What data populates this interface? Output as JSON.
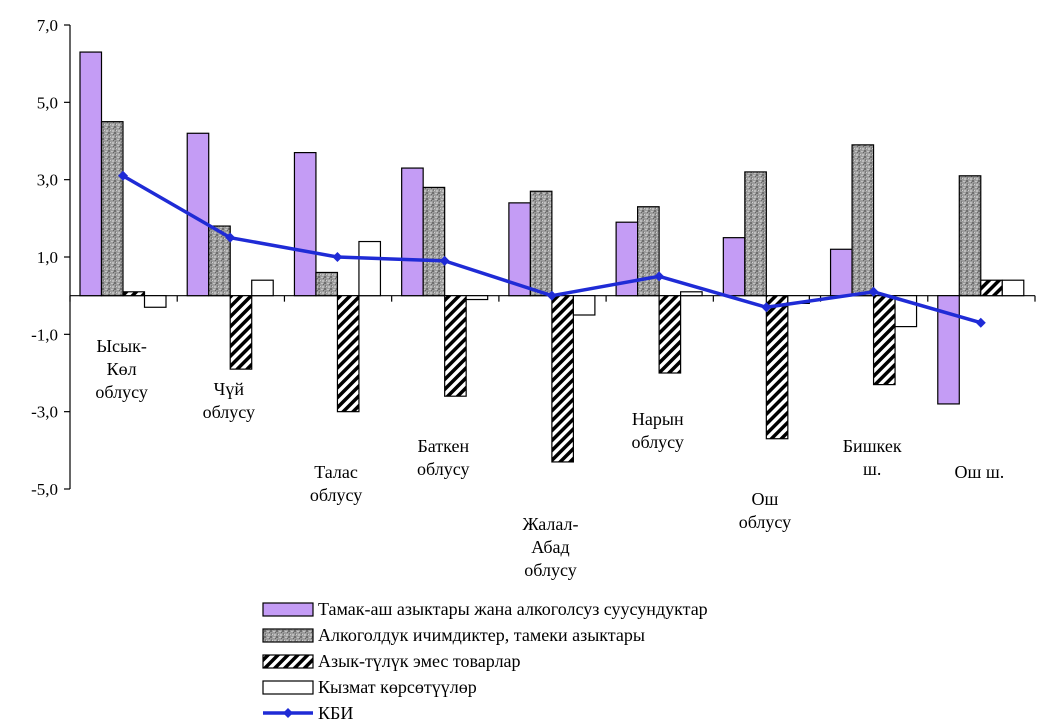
{
  "chart_data": {
    "type": "bar",
    "categories": [
      [
        "Ысык-",
        "Көл",
        "облусу"
      ],
      [
        "Чүй",
        "облусу"
      ],
      [
        "Талас",
        "облусу"
      ],
      [
        "Баткен",
        "облусу"
      ],
      [
        "Жалал-",
        "Абад",
        "облусу"
      ],
      [
        "Нарын",
        "облусу"
      ],
      [
        "Ош",
        "облусу"
      ],
      [
        "Бишкек",
        "ш."
      ],
      [
        "Ош ш."
      ]
    ],
    "series": [
      {
        "name": "Тамак-аш азыктары жана алкоголсуз суусундуктар",
        "kind": "bar",
        "pattern": "solid-violet",
        "values": [
          6.3,
          4.2,
          3.7,
          3.3,
          2.4,
          1.9,
          1.5,
          1.2,
          -2.8
        ]
      },
      {
        "name": "Алкоголдук ичимдиктер, тамеки азыктары",
        "kind": "bar",
        "pattern": "gray-texture",
        "values": [
          4.5,
          1.8,
          0.6,
          2.8,
          2.7,
          2.3,
          3.2,
          3.9,
          3.1
        ]
      },
      {
        "name": "Азык-түлүк эмес товарлар",
        "kind": "bar",
        "pattern": "diagonal-hatch",
        "values": [
          0.1,
          -1.9,
          -3.0,
          -2.6,
          -4.3,
          -2.0,
          -3.7,
          -2.3,
          0.4
        ]
      },
      {
        "name": "Кызмат көрсөтүүлөр",
        "kind": "bar",
        "pattern": "white",
        "values": [
          -0.3,
          0.4,
          1.4,
          -0.1,
          -0.5,
          0.1,
          -0.2,
          -0.8,
          0.4
        ]
      },
      {
        "name": "КБИ",
        "kind": "line",
        "color": "#1f2bd6",
        "values": [
          3.1,
          1.5,
          1.0,
          0.9,
          0.0,
          0.5,
          -0.3,
          0.1,
          -0.7
        ]
      }
    ],
    "yticks": [
      "7,0",
      "5,0",
      "3,0",
      "1,0",
      "-1,0",
      "-3,0",
      "-5,0"
    ],
    "ytick_values": [
      7,
      5,
      3,
      1,
      -1,
      -3,
      -5
    ],
    "ylim": [
      -5,
      7
    ],
    "xlabel": "",
    "ylabel": "",
    "legend_position": "bottom",
    "colors": {
      "violet": "#c49cf5",
      "line": "#1f2bd6",
      "gray": "#9a9a9a"
    }
  }
}
